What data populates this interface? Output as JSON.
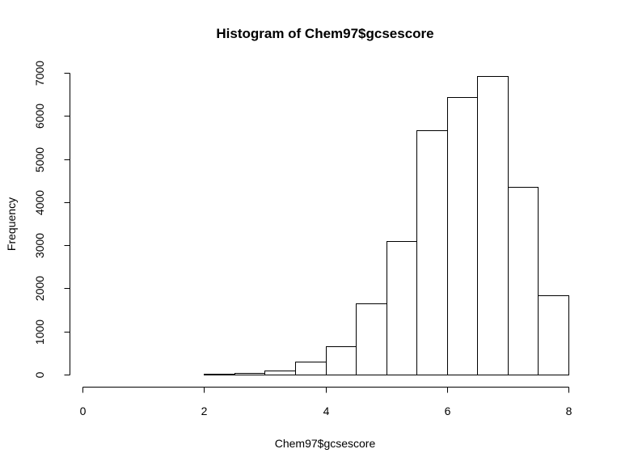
{
  "chart_data": {
    "type": "bar",
    "title": "Histogram of Chem97$gcsescore",
    "xlabel": "Chem97$gcsescore",
    "ylabel": "Frequency",
    "bins": [
      {
        "start": 0.0,
        "end": 0.5,
        "count": 3
      },
      {
        "start": 0.5,
        "end": 1.0,
        "count": 3
      },
      {
        "start": 1.0,
        "end": 1.5,
        "count": 3
      },
      {
        "start": 1.5,
        "end": 2.0,
        "count": 5
      },
      {
        "start": 2.0,
        "end": 2.5,
        "count": 10
      },
      {
        "start": 2.5,
        "end": 3.0,
        "count": 30
      },
      {
        "start": 3.0,
        "end": 3.5,
        "count": 90
      },
      {
        "start": 3.5,
        "end": 4.0,
        "count": 300
      },
      {
        "start": 4.0,
        "end": 4.5,
        "count": 650
      },
      {
        "start": 4.5,
        "end": 5.0,
        "count": 1660
      },
      {
        "start": 5.0,
        "end": 5.5,
        "count": 3090
      },
      {
        "start": 5.5,
        "end": 6.0,
        "count": 5660
      },
      {
        "start": 6.0,
        "end": 6.5,
        "count": 6430
      },
      {
        "start": 6.5,
        "end": 7.0,
        "count": 6930
      },
      {
        "start": 7.0,
        "end": 7.5,
        "count": 4360
      },
      {
        "start": 7.5,
        "end": 8.0,
        "count": 1830
      }
    ],
    "xlim": [
      0,
      8
    ],
    "ylim": [
      0,
      7000
    ],
    "xticks": [
      0,
      2,
      4,
      6,
      8
    ],
    "yticks": [
      0,
      1000,
      2000,
      3000,
      4000,
      5000,
      6000,
      7000
    ],
    "grid": false
  }
}
